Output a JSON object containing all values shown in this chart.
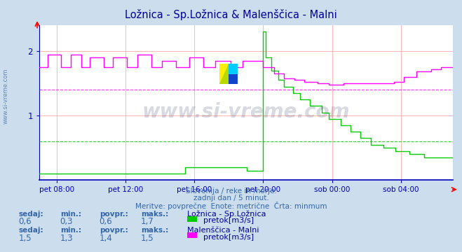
{
  "title": "Ložnica - Sp.Ložnica & Malenščica - Malni",
  "title_color": "#000099",
  "bg_color": "#ccdded",
  "plot_bg_color": "#ffffff",
  "grid_color": "#ffaaaa",
  "axis_color": "#0000bb",
  "text_color": "#3366aa",
  "watermark_text": "www.si-vreme.com",
  "watermark_color": "#223355",
  "watermark_alpha": 0.18,
  "subtitle1": "Slovenija / reke in morje.",
  "subtitle2": "zadnji dan / 5 minut.",
  "subtitle3": "Meritve: povprečne  Enote: metrične  Črta: minmum",
  "xlabel_ticks": [
    "pet 08:00",
    "pet 12:00",
    "pet 16:00",
    "pet 20:00",
    "sob 00:00",
    "sob 04:00"
  ],
  "ylim": [
    0,
    2.4
  ],
  "yticks": [
    1,
    2
  ],
  "green_color": "#00cc00",
  "magenta_color": "#ff00ff",
  "avg_green": 0.6,
  "avg_magenta": 1.4,
  "legend1_title": "Ložnica - Sp.Ložnica",
  "legend2_title": "Malenščica - Malni",
  "legend1_label": "pretok[m3/s]",
  "legend2_label": "pretok[m3/s]",
  "stat1": {
    "sedaj": "0,6",
    "min": "0,3",
    "povpr": "0,6",
    "maks": "1,7"
  },
  "stat2": {
    "sedaj": "1,5",
    "min": "1,3",
    "povpr": "1,4",
    "maks": "1,5"
  },
  "n_points": 288
}
